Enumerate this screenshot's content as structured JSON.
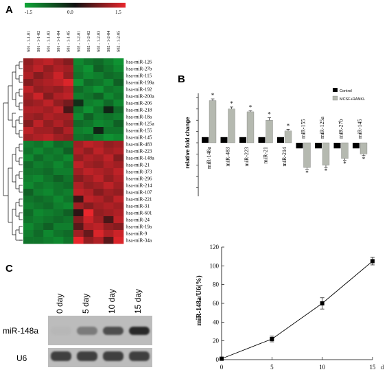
{
  "panels": {
    "a": "A",
    "b": "B",
    "c": "C"
  },
  "heatmap": {
    "colorbar": {
      "min_label": "-1.5",
      "mid_label": "0.0",
      "max_label": "1.5",
      "low_color": "#0fa637",
      "mid_color": "#111111",
      "high_color": "#e8262c"
    },
    "samples": [
      "S01 - 1-1-01",
      "S01 - 1-1-02",
      "S01 - 1-1-03",
      "S01 - 1-1-04",
      "S01 - 1-1-05",
      "S02 - 1-2-01",
      "S02 - 1-2-02",
      "S02 - 1-2-03",
      "S02 - 1-2-04",
      "S02 - 1-2-05"
    ],
    "genes": [
      "hsa-miR-126",
      "hsa-miR-27b",
      "hsa-miR-115",
      "hsa-miR-199a",
      "hsa-miR-192",
      "hsa-miR-200a",
      "hsa-miR-206",
      "hsa-miR-218",
      "hsa-miR-18a",
      "hsa-miR-125a",
      "hsa-miR-155",
      "hsa-miR-145",
      "hsa-miR-483",
      "hsa-miR-223",
      "hsa-miR-148a",
      "hsa-miR-21",
      "hsa-miR-373",
      "hsa-miR-296",
      "hsa-miR-214",
      "hsa-miR-107",
      "hsa-miR-221",
      "hsa-miR-31",
      "hsa-miR-601",
      "hsa-miR-24",
      "hsa-miR-19a",
      "hsa-miR-9",
      "hsa-miR-34a"
    ],
    "values": [
      [
        0.9,
        1.1,
        1.2,
        1.0,
        0.8,
        -1.2,
        -1.0,
        -0.9,
        -1.1,
        -1.3
      ],
      [
        1.0,
        1.2,
        0.9,
        1.1,
        1.0,
        -1.1,
        -1.3,
        -0.8,
        -1.0,
        -1.2
      ],
      [
        1.1,
        0.8,
        1.0,
        1.3,
        0.9,
        -1.0,
        -1.2,
        -1.1,
        -0.9,
        -1.0
      ],
      [
        0.8,
        1.0,
        1.1,
        1.2,
        1.4,
        -1.3,
        -0.9,
        -1.0,
        -1.2,
        -0.8
      ],
      [
        1.2,
        0.9,
        1.0,
        0.9,
        1.1,
        -0.9,
        -1.1,
        -1.3,
        -1.0,
        -1.1
      ],
      [
        1.0,
        1.3,
        0.8,
        1.1,
        1.2,
        -1.1,
        -1.0,
        -0.8,
        -1.2,
        -1.0
      ],
      [
        0.9,
        1.0,
        1.2,
        0.9,
        0.7,
        -0.3,
        -1.1,
        -1.2,
        -0.9,
        -1.2
      ],
      [
        1.1,
        1.1,
        1.0,
        1.2,
        0.4,
        -1.0,
        -1.3,
        -1.0,
        -0.2,
        -0.9
      ],
      [
        1.0,
        0.9,
        1.1,
        1.0,
        1.0,
        -1.2,
        -0.8,
        -1.1,
        -1.0,
        -1.1
      ],
      [
        0.8,
        1.2,
        0.9,
        1.1,
        0.9,
        -0.9,
        -1.0,
        -1.2,
        -1.1,
        -0.8
      ],
      [
        1.2,
        1.0,
        1.0,
        0.8,
        1.1,
        -1.1,
        -1.2,
        -0.2,
        -1.0,
        -1.0
      ],
      [
        1.0,
        1.1,
        1.2,
        1.0,
        0.9,
        -1.0,
        -0.9,
        -1.1,
        -1.3,
        -1.2
      ],
      [
        -1.1,
        -1.0,
        -1.2,
        -0.9,
        -1.0,
        1.0,
        1.2,
        1.1,
        0.9,
        1.0
      ],
      [
        -1.0,
        -1.2,
        -1.0,
        -1.1,
        -0.8,
        1.1,
        0.9,
        1.2,
        1.0,
        1.1
      ],
      [
        -1.2,
        -0.9,
        -1.1,
        -1.0,
        -1.2,
        0.9,
        1.1,
        1.0,
        1.2,
        0.8
      ],
      [
        -0.9,
        -1.1,
        -1.0,
        -1.2,
        -1.0,
        1.2,
        1.0,
        0.9,
        1.1,
        1.0
      ],
      [
        -1.0,
        -1.0,
        -0.9,
        -1.1,
        -1.1,
        1.0,
        1.2,
        1.1,
        1.0,
        1.2
      ],
      [
        -1.1,
        -1.2,
        -1.0,
        -0.8,
        -1.0,
        0.8,
        1.0,
        1.2,
        0.9,
        1.1
      ],
      [
        -1.2,
        -1.0,
        -1.1,
        -1.0,
        -0.9,
        1.1,
        0.9,
        1.0,
        1.2,
        1.0
      ],
      [
        -0.8,
        -1.1,
        -1.2,
        -1.0,
        -1.1,
        1.2,
        1.1,
        0.8,
        1.0,
        0.9
      ],
      [
        -1.0,
        -0.9,
        -1.0,
        -1.2,
        -1.0,
        0.3,
        1.2,
        1.1,
        0.9,
        1.2
      ],
      [
        -1.1,
        -1.0,
        -0.9,
        -1.1,
        -1.2,
        1.0,
        0.8,
        1.0,
        1.1,
        1.0
      ],
      [
        -0.9,
        -1.2,
        -1.1,
        -1.0,
        -0.8,
        0.2,
        1.5,
        0.9,
        1.0,
        1.1
      ],
      [
        -1.0,
        -1.1,
        -1.0,
        -0.9,
        -1.0,
        0.8,
        1.3,
        1.0,
        0.4,
        1.2
      ],
      [
        -1.2,
        -1.0,
        -0.8,
        -1.1,
        -1.1,
        0.5,
        1.1,
        1.2,
        0.9,
        0.8
      ],
      [
        -1.1,
        -0.9,
        -1.2,
        -1.0,
        -0.9,
        1.0,
        0.6,
        1.4,
        1.1,
        1.3
      ],
      [
        -1.0,
        -1.0,
        -1.1,
        -1.2,
        -1.0,
        1.5,
        0.9,
        1.1,
        0.5,
        1.4
      ]
    ]
  },
  "chart_data": [
    {
      "type": "bar",
      "ylabel": "relative fold change",
      "categories": [
        "miR-148a",
        "miR-483",
        "miR-223",
        "miR-21",
        "miR-214",
        "miR-155",
        "miR-125a",
        "miR-27b",
        "miR-145"
      ],
      "series": [
        {
          "name": "Control",
          "values": [
            1,
            1,
            1,
            1,
            1,
            -1,
            -1,
            -1,
            -1
          ],
          "color": "#000000"
        },
        {
          "name": "MCSF+RANKL",
          "values": [
            7.5,
            6.0,
            5.5,
            4.0,
            2.1,
            -4.4,
            -4.0,
            -2.8,
            -2.0
          ],
          "errors": [
            0.3,
            0.35,
            0.2,
            0.45,
            0.3,
            0.35,
            0.4,
            0.3,
            0.3
          ],
          "color": "#b5b9b0"
        }
      ],
      "significance_marker": "*",
      "legend_position": "top-right"
    },
    {
      "type": "table",
      "caption": "gel",
      "lanes": [
        "0 day",
        "5 day",
        "10 day",
        "15 day"
      ],
      "rows": [
        {
          "label": "miR-148a",
          "intensity": [
            0.05,
            0.45,
            0.75,
            1.0
          ]
        },
        {
          "label": "U6",
          "intensity": [
            0.85,
            0.85,
            0.85,
            0.85
          ]
        }
      ]
    },
    {
      "type": "line",
      "ylabel": "miR-148a/U6(%)",
      "x": [
        0,
        5,
        10,
        15
      ],
      "y": [
        1,
        22,
        60,
        105
      ],
      "errors": [
        1,
        3,
        6,
        4
      ],
      "xlim": [
        0,
        15
      ],
      "ylim": [
        0,
        120
      ],
      "x_ticks": [
        "0",
        "5",
        "10",
        "15"
      ],
      "y_ticks": [
        "0",
        "20",
        "40",
        "60",
        "80",
        "100",
        "120"
      ],
      "x_unit": "d"
    }
  ]
}
